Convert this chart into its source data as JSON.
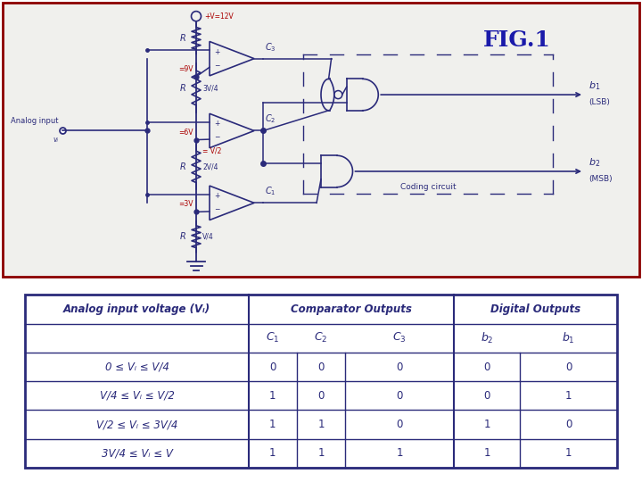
{
  "fig_title": "FIG.1",
  "fig_title_color": "#1a1aaa",
  "circuit_border_color": "#8b0000",
  "circuit_bg": "#f0f0ed",
  "navy": "#2a2a7a",
  "red_label": "#aa0000",
  "top_label": "+V=12V",
  "voltage_labels": [
    "=9V",
    "=6V",
    "=3V"
  ],
  "middle_label": "= V/2",
  "resistor_labels": [
    "3V/4",
    "2V/4",
    "V/4"
  ],
  "coding_circuit_label": "Coding circuit",
  "analog_input_label": "Analog input",
  "analog_input_sub": "vᵢ",
  "table_group_headers": [
    "Analog input voltage (Vᵢ)",
    "Comparator Outputs",
    "Digital Outputs"
  ],
  "table_rows": [
    [
      "0 ≤ Vᵢ ≤ V/4",
      "0",
      "0",
      "0",
      "0",
      "0"
    ],
    [
      "V/4 ≤ Vᵢ ≤ V/2",
      "1",
      "0",
      "0",
      "0",
      "1"
    ],
    [
      "V/2 ≤ Vᵢ ≤ 3V/4",
      "1",
      "1",
      "0",
      "1",
      "0"
    ],
    [
      "3V/4 ≤ Vᵢ ≤ V",
      "1",
      "1",
      "1",
      "1",
      "1"
    ]
  ]
}
